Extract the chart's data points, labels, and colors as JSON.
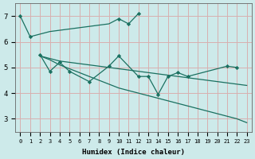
{
  "xlabel": "Humidex (Indice chaleur)",
  "background_color": "#cdeaea",
  "grid_color": "#d8b0b0",
  "line_color": "#1a7060",
  "xlim": [
    -0.5,
    23.5
  ],
  "ylim": [
    2.5,
    7.5
  ],
  "yticks": [
    3,
    4,
    5,
    6,
    7
  ],
  "xticks": [
    0,
    1,
    2,
    3,
    4,
    5,
    6,
    7,
    8,
    9,
    10,
    11,
    12,
    13,
    14,
    15,
    16,
    17,
    18,
    19,
    20,
    21,
    22,
    23
  ],
  "line1_x": [
    0,
    1,
    2,
    3,
    4,
    5,
    6,
    7,
    8,
    9,
    10,
    11,
    12
  ],
  "line1_y": [
    7.0,
    6.2,
    6.3,
    6.4,
    6.45,
    6.5,
    6.55,
    6.6,
    6.65,
    6.7,
    6.9,
    6.7,
    7.1
  ],
  "line2_x": [
    2,
    3,
    4,
    5,
    7,
    9,
    10,
    12,
    13,
    14,
    15,
    16,
    17,
    21,
    22
  ],
  "line2_y": [
    5.5,
    4.85,
    5.2,
    4.85,
    4.45,
    5.05,
    5.45,
    4.65,
    4.65,
    3.95,
    4.65,
    4.8,
    4.65,
    5.05,
    5.0
  ],
  "line3_x": [
    2,
    3,
    4,
    5,
    6,
    7,
    8,
    9,
    10,
    11,
    12,
    13,
    14,
    15,
    16,
    17,
    18,
    19,
    20,
    21,
    22,
    23
  ],
  "line3_y": [
    5.45,
    5.35,
    5.25,
    5.2,
    5.15,
    5.1,
    5.05,
    5.0,
    4.95,
    4.9,
    4.85,
    4.8,
    4.75,
    4.7,
    4.65,
    4.6,
    4.55,
    4.5,
    4.45,
    4.4,
    4.35,
    4.3
  ],
  "line4_x": [
    2,
    3,
    4,
    5,
    6,
    7,
    8,
    9,
    10,
    11,
    12,
    13,
    14,
    15,
    16,
    17,
    18,
    19,
    20,
    21,
    22,
    23
  ],
  "line4_y": [
    5.45,
    5.3,
    5.1,
    4.95,
    4.8,
    4.65,
    4.5,
    4.35,
    4.2,
    4.1,
    4.0,
    3.9,
    3.8,
    3.7,
    3.6,
    3.5,
    3.4,
    3.3,
    3.2,
    3.1,
    3.0,
    2.85
  ]
}
